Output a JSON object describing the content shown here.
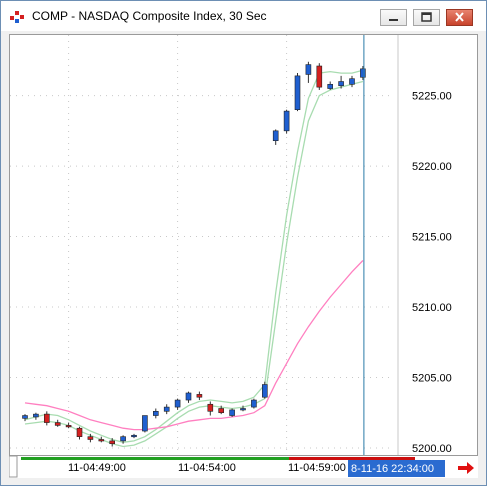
{
  "window": {
    "title": "COMP - NASDAQ Composite Index, 30 Sec",
    "controls": [
      "minimize-icon",
      "restore-icon",
      "close-icon"
    ]
  },
  "colors": {
    "up_candle": "#1f5fd0",
    "down_candle": "#d42020",
    "band_line": "#a8dcb0",
    "ma_line": "#ff7fc0",
    "crosshair": "#2a7aa8",
    "cursor_label_bg": "#2a6bd0"
  },
  "xaxis": {
    "labels": [
      "11-04:49:00",
      "11-04:54:00",
      "11-04:59:00"
    ],
    "cursor_label": "8-11-16 22:34:00"
  },
  "scroll_arrow_icon": "right-arrow-icon",
  "chart_data": {
    "type": "candlestick",
    "title": "COMP - NASDAQ Composite Index, 30 Sec",
    "ylim": [
      5199.5,
      5229.3
    ],
    "yticks": [
      5200.0,
      5205.0,
      5210.0,
      5215.0,
      5220.0,
      5225.0
    ],
    "ytick_labels": [
      "5200.00",
      "5205.00",
      "5210.00",
      "5215.00",
      "5220.00",
      "5225.00"
    ],
    "grid": true,
    "xlabels_at_bar": [
      {
        "bar": 4,
        "label": "11-04:49:00"
      },
      {
        "bar": 14,
        "label": "11-04:54:00"
      },
      {
        "bar": 24,
        "label": "11-04:59:00"
      }
    ],
    "candles": [
      {
        "o": 5202.1,
        "h": 5202.4,
        "l": 5201.9,
        "c": 5202.3
      },
      {
        "o": 5202.2,
        "h": 5202.5,
        "l": 5202.0,
        "c": 5202.4
      },
      {
        "o": 5202.4,
        "h": 5202.6,
        "l": 5201.6,
        "c": 5201.8
      },
      {
        "o": 5201.8,
        "h": 5202.0,
        "l": 5201.5,
        "c": 5201.6
      },
      {
        "o": 5201.6,
        "h": 5201.8,
        "l": 5201.4,
        "c": 5201.5
      },
      {
        "o": 5201.4,
        "h": 5201.5,
        "l": 5200.6,
        "c": 5200.8
      },
      {
        "o": 5200.8,
        "h": 5201.0,
        "l": 5200.4,
        "c": 5200.6
      },
      {
        "o": 5200.6,
        "h": 5200.8,
        "l": 5200.4,
        "c": 5200.5
      },
      {
        "o": 5200.5,
        "h": 5200.7,
        "l": 5200.1,
        "c": 5200.3
      },
      {
        "o": 5200.5,
        "h": 5200.9,
        "l": 5200.3,
        "c": 5200.8
      },
      {
        "o": 5200.8,
        "h": 5201.0,
        "l": 5200.7,
        "c": 5200.9
      },
      {
        "o": 5201.2,
        "h": 5202.3,
        "l": 5201.1,
        "c": 5202.3
      },
      {
        "o": 5202.3,
        "h": 5202.8,
        "l": 5202.1,
        "c": 5202.6
      },
      {
        "o": 5202.6,
        "h": 5203.1,
        "l": 5202.4,
        "c": 5202.9
      },
      {
        "o": 5202.9,
        "h": 5203.5,
        "l": 5202.7,
        "c": 5203.4
      },
      {
        "o": 5203.4,
        "h": 5204.0,
        "l": 5203.2,
        "c": 5203.9
      },
      {
        "o": 5203.8,
        "h": 5204.0,
        "l": 5203.4,
        "c": 5203.6
      },
      {
        "o": 5203.1,
        "h": 5203.3,
        "l": 5202.3,
        "c": 5202.6
      },
      {
        "o": 5202.8,
        "h": 5203.0,
        "l": 5202.4,
        "c": 5202.5
      },
      {
        "o": 5202.3,
        "h": 5202.8,
        "l": 5202.2,
        "c": 5202.7
      },
      {
        "o": 5202.8,
        "h": 5203.0,
        "l": 5202.6,
        "c": 5202.8
      },
      {
        "o": 5202.9,
        "h": 5203.5,
        "l": 5202.8,
        "c": 5203.4
      },
      {
        "o": 5203.6,
        "h": 5204.7,
        "l": 5203.5,
        "c": 5204.5
      },
      {
        "o": 5221.8,
        "h": 5222.6,
        "l": 5221.5,
        "c": 5222.5
      },
      {
        "o": 5222.5,
        "h": 5224.0,
        "l": 5222.3,
        "c": 5223.9
      },
      {
        "o": 5224.0,
        "h": 5226.6,
        "l": 5223.9,
        "c": 5226.4
      },
      {
        "o": 5226.5,
        "h": 5227.4,
        "l": 5225.9,
        "c": 5227.2
      },
      {
        "o": 5227.1,
        "h": 5227.3,
        "l": 5225.4,
        "c": 5225.6
      },
      {
        "o": 5225.5,
        "h": 5226.0,
        "l": 5225.4,
        "c": 5225.8
      },
      {
        "o": 5225.7,
        "h": 5226.4,
        "l": 5225.5,
        "c": 5226.0
      },
      {
        "o": 5225.8,
        "h": 5226.4,
        "l": 5225.6,
        "c": 5226.2
      },
      {
        "o": 5226.3,
        "h": 5227.1,
        "l": 5226.1,
        "c": 5226.9
      }
    ],
    "series": [
      {
        "values": [
          5202.0,
          5202.2,
          5202.4,
          5202.3,
          5202.0,
          5201.6,
          5201.2,
          5200.9,
          5200.6,
          5200.4,
          5200.5,
          5200.8,
          5201.3,
          5201.9,
          5202.5,
          5203.0,
          5203.3,
          5203.4,
          5203.3,
          5203.2,
          5203.3,
          5203.6,
          5204.5,
          5211.0,
          5216.5,
          5221.0,
          5224.8,
          5226.6,
          5226.7,
          5226.6,
          5226.6,
          5226.8
        ]
      },
      {
        "values": [
          5201.7,
          5201.8,
          5201.9,
          5201.8,
          5201.6,
          5201.2,
          5200.9,
          5200.6,
          5200.3,
          5200.1,
          5200.2,
          5200.5,
          5201.0,
          5201.5,
          5202.1,
          5202.6,
          5202.9,
          5203.0,
          5202.9,
          5202.8,
          5202.9,
          5203.1,
          5203.5,
          5209.0,
          5214.5,
          5219.2,
          5223.2,
          5225.0,
          5225.4,
          5225.6,
          5225.8,
          5226.0
        ]
      },
      {
        "values": [
          5203.2,
          5203.1,
          5203.0,
          5202.8,
          5202.6,
          5202.3,
          5202.0,
          5201.8,
          5201.6,
          5201.4,
          5201.3,
          5201.3,
          5201.4,
          5201.5,
          5201.7,
          5201.9,
          5202.0,
          5202.1,
          5202.1,
          5202.2,
          5202.3,
          5202.5,
          5203.0,
          5204.6,
          5206.0,
          5207.4,
          5208.6,
          5209.7,
          5210.7,
          5211.6,
          5212.5,
          5213.3
        ]
      }
    ]
  }
}
